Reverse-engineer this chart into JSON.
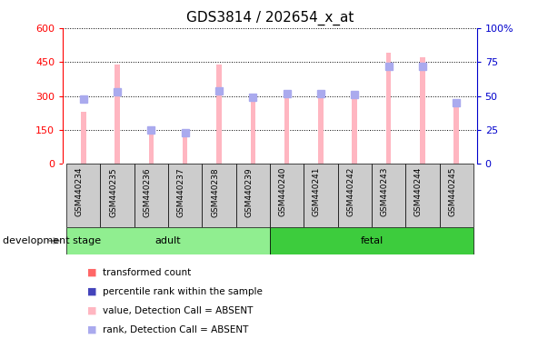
{
  "title": "GDS3814 / 202654_x_at",
  "samples": [
    "GSM440234",
    "GSM440235",
    "GSM440236",
    "GSM440237",
    "GSM440238",
    "GSM440239",
    "GSM440240",
    "GSM440241",
    "GSM440242",
    "GSM440243",
    "GSM440244",
    "GSM440245"
  ],
  "transformed_count": [
    230,
    440,
    130,
    120,
    440,
    290,
    320,
    320,
    305,
    490,
    470,
    260
  ],
  "percentile_rank": [
    48,
    53,
    25,
    23,
    54,
    49,
    52,
    52,
    51,
    72,
    72,
    45
  ],
  "detection_call": [
    "ABSENT",
    "ABSENT",
    "ABSENT",
    "ABSENT",
    "ABSENT",
    "ABSENT",
    "ABSENT",
    "ABSENT",
    "ABSENT",
    "ABSENT",
    "ABSENT",
    "ABSENT"
  ],
  "groups": [
    {
      "label": "adult",
      "start": 0,
      "end": 5,
      "color": "#90EE90"
    },
    {
      "label": "fetal",
      "start": 6,
      "end": 11,
      "color": "#3DCC3D"
    }
  ],
  "ylim_left": [
    0,
    600
  ],
  "ylim_right": [
    0,
    100
  ],
  "yticks_left": [
    0,
    150,
    300,
    450,
    600
  ],
  "yticks_right": [
    0,
    25,
    50,
    75,
    100
  ],
  "bar_color_absent": "#FFB6C1",
  "rank_color_absent": "#AAAAEE",
  "bar_color_present": "#FF6666",
  "rank_color_present": "#4444BB",
  "left_axis_color": "#FF0000",
  "right_axis_color": "#0000CC",
  "label_bg_color": "#CCCCCC",
  "bar_width": 0.15,
  "rank_marker_size": 6
}
